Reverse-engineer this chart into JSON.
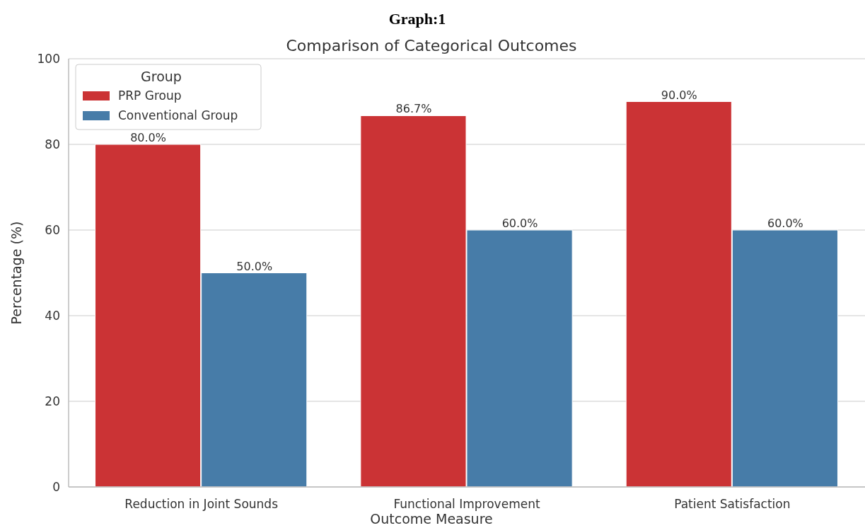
{
  "chart_data": {
    "type": "bar",
    "title": "Comparison of Categorical Outcomes",
    "xlabel": "Outcome Measure",
    "ylabel": "Percentage (%)",
    "legend_title": "Group",
    "annotations": [
      "Graph:1"
    ],
    "categories": [
      "Reduction in Joint Sounds",
      "Functional Improvement",
      "Patient Satisfaction"
    ],
    "series": [
      {
        "name": "PRP Group",
        "color": "#cb3335",
        "values": [
          80.0,
          86.7,
          90.0
        ],
        "value_labels": [
          "80.0%",
          "86.7%",
          "90.0%"
        ]
      },
      {
        "name": "Conventional Group",
        "color": "#477ca8",
        "values": [
          50.0,
          60.0,
          60.0
        ],
        "value_labels": [
          "50.0%",
          "60.0%",
          "60.0%"
        ]
      }
    ],
    "ylim": [
      0,
      100
    ],
    "yticks": [
      0,
      20,
      40,
      60,
      80,
      100
    ],
    "grid": "y",
    "legend": "top left"
  }
}
